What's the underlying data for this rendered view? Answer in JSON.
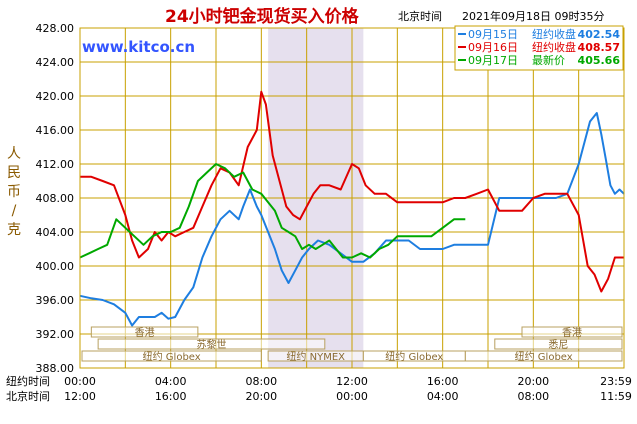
{
  "colors": {
    "grid": "#c8a000",
    "blue": "#1e7ee0",
    "red": "#e00000",
    "green": "#00a800",
    "title": "#cc0000",
    "shade": "#e6e0ee",
    "watermark": "#3355ff",
    "axis_text": "#000000"
  },
  "chart_data": {
    "type": "line",
    "title": "24小时钯金现货买入价格",
    "timezone_label": "北京时间",
    "timestamp": "2021年09月18日 09时35分",
    "watermark": "www.kitco.cn",
    "ylabel": "人民币/克",
    "ylim": [
      388,
      428
    ],
    "xlim": [
      0,
      24
    ],
    "grid": true,
    "legend_position": "top-right",
    "y_ticks": [
      "428.00",
      "424.00",
      "420.00",
      "416.00",
      "412.00",
      "408.00",
      "404.00",
      "400.00",
      "396.00",
      "392.00",
      "388.00"
    ],
    "y_tick_values": [
      428,
      424,
      420,
      416,
      412,
      408,
      404,
      400,
      396,
      392,
      388
    ],
    "x_tick_positions": [
      0,
      4,
      8,
      12,
      16,
      20,
      24
    ],
    "x_axis_rows": [
      {
        "label": "纽约时间",
        "ticks": [
          "00:00",
          "04:00",
          "08:00",
          "12:00",
          "16:00",
          "20:00",
          "23:59"
        ]
      },
      {
        "label": "北京时间",
        "ticks": [
          "12:00",
          "16:00",
          "20:00",
          "00:00",
          "04:00",
          "08:00",
          "11:59"
        ]
      }
    ],
    "shaded_range": [
      8.3,
      12.5
    ],
    "legend": [
      {
        "date": "09月15日",
        "text": "纽约收盘",
        "value": "402.54",
        "color_key": "blue"
      },
      {
        "date": "09月16日",
        "text": "纽约收盘",
        "value": "408.57",
        "color_key": "red"
      },
      {
        "date": "09月17日",
        "text": "最新价",
        "value": "405.66",
        "color_key": "green"
      }
    ],
    "sessions": [
      {
        "label": "香港",
        "row": 0,
        "start": 0.5,
        "end": 5.2
      },
      {
        "label": "香港",
        "row": 0,
        "start": 19.5,
        "end": 24.5
      },
      {
        "label": "苏黎世",
        "row": 1,
        "start": 0.8,
        "end": 10.8
      },
      {
        "label": "悉尼",
        "row": 1,
        "start": 18.3,
        "end": 24.5
      },
      {
        "label": "纽约 Globex",
        "row": 2,
        "start": 0,
        "end": 8.0
      },
      {
        "label": "纽约 NYMEX",
        "row": 2,
        "start": 8.3,
        "end": 12.5
      },
      {
        "label": "纽约 Globex",
        "row": 2,
        "start": 12.5,
        "end": 17.0
      },
      {
        "label": "纽约 Globex",
        "row": 2,
        "start": 17.0,
        "end": 24.5
      }
    ],
    "series": [
      {
        "name": "09月15日",
        "color_key": "blue",
        "x": [
          0,
          0.5,
          1,
          1.5,
          2,
          2.3,
          2.6,
          3,
          3.3,
          3.6,
          3.9,
          4.2,
          4.6,
          5.0,
          5.4,
          5.8,
          6.2,
          6.6,
          7.0,
          7.2,
          7.5,
          7.8,
          8.0,
          8.3,
          8.6,
          8.9,
          9.2,
          9.5,
          9.8,
          10.1,
          10.5,
          11,
          11.5,
          12,
          12.5,
          13,
          13.5,
          14,
          14.5,
          15,
          15.5,
          16,
          16.5,
          17,
          17.5,
          18,
          18.5,
          19,
          19.5,
          20,
          20.5,
          21,
          21.5,
          22,
          22.5,
          22.8,
          23.0,
          23.2,
          23.4,
          23.6,
          23.8,
          24.0
        ],
        "y": [
          396.5,
          396.2,
          396.0,
          395.5,
          394.5,
          393.0,
          394.0,
          394.0,
          394.0,
          394.5,
          393.8,
          394.0,
          396.0,
          397.5,
          401.0,
          403.5,
          405.5,
          406.5,
          405.5,
          407.0,
          409.0,
          407.0,
          406.0,
          404.0,
          402.0,
          399.5,
          398.0,
          399.5,
          401.0,
          402.0,
          403.0,
          402.5,
          401.5,
          400.5,
          400.5,
          401.5,
          403.0,
          403.0,
          403.0,
          402.0,
          402.0,
          402.0,
          402.5,
          402.5,
          402.5,
          402.5,
          408.0,
          408.0,
          408.0,
          408.0,
          408.0,
          408.0,
          408.5,
          412.0,
          417.0,
          418.0,
          415.5,
          412.5,
          409.5,
          408.5,
          409.0,
          408.5
        ]
      },
      {
        "name": "09月16日",
        "color_key": "red",
        "x": [
          0,
          0.5,
          1,
          1.5,
          2,
          2.3,
          2.6,
          3,
          3.3,
          3.6,
          3.9,
          4.2,
          4.6,
          5.0,
          5.4,
          5.8,
          6.2,
          6.6,
          7.0,
          7.4,
          7.8,
          8.0,
          8.2,
          8.5,
          8.8,
          9.1,
          9.4,
          9.7,
          10.0,
          10.3,
          10.6,
          11,
          11.5,
          12,
          12.3,
          12.6,
          13,
          13.5,
          14,
          14.5,
          15,
          15.5,
          16,
          16.5,
          17,
          17.5,
          18,
          18.5,
          19,
          19.5,
          20,
          20.5,
          21,
          21.5,
          22,
          22.2,
          22.4,
          22.7,
          23,
          23.3,
          23.6,
          24.0
        ],
        "y": [
          410.5,
          410.5,
          410.0,
          409.5,
          406.0,
          403.0,
          401.0,
          402.0,
          404.0,
          403.0,
          404.0,
          403.5,
          404.0,
          404.5,
          407.0,
          409.5,
          411.5,
          411.0,
          409.5,
          414.0,
          416.0,
          420.5,
          419.0,
          413.0,
          410.0,
          407.0,
          406.0,
          405.5,
          407.0,
          408.5,
          409.5,
          409.5,
          409.0,
          412.0,
          411.5,
          409.5,
          408.5,
          408.5,
          407.5,
          407.5,
          407.5,
          407.5,
          407.5,
          408.0,
          408.0,
          408.5,
          409.0,
          406.5,
          406.5,
          406.5,
          408.0,
          408.5,
          408.5,
          408.5,
          406.0,
          403.0,
          400.0,
          399.0,
          397.0,
          398.5,
          401.0,
          401.0
        ]
      },
      {
        "name": "09月17日",
        "color_key": "green",
        "x": [
          0,
          0.4,
          0.8,
          1.2,
          1.6,
          2.0,
          2.4,
          2.8,
          3.2,
          3.6,
          4.0,
          4.4,
          4.8,
          5.2,
          5.6,
          6.0,
          6.4,
          6.8,
          7.2,
          7.6,
          8.0,
          8.3,
          8.6,
          8.9,
          9.2,
          9.5,
          9.8,
          10.1,
          10.4,
          10.7,
          11.0,
          11.3,
          11.6,
          12.0,
          12.4,
          12.8,
          13.2,
          13.6,
          14.0,
          14.5,
          15.0,
          15.5,
          16.0,
          16.5,
          17.0
        ],
        "y": [
          401.0,
          401.5,
          402.0,
          402.5,
          405.5,
          404.5,
          403.5,
          402.5,
          403.5,
          404.0,
          404.0,
          404.5,
          407.0,
          410.0,
          411.0,
          412.0,
          411.5,
          410.5,
          411.0,
          409.0,
          408.5,
          407.5,
          406.5,
          404.5,
          404.0,
          403.5,
          402.0,
          402.5,
          402.0,
          402.5,
          403.0,
          402.0,
          401.0,
          401.0,
          401.5,
          401.0,
          402.0,
          402.5,
          403.5,
          403.5,
          403.5,
          403.5,
          404.5,
          405.5,
          405.5
        ]
      }
    ]
  }
}
